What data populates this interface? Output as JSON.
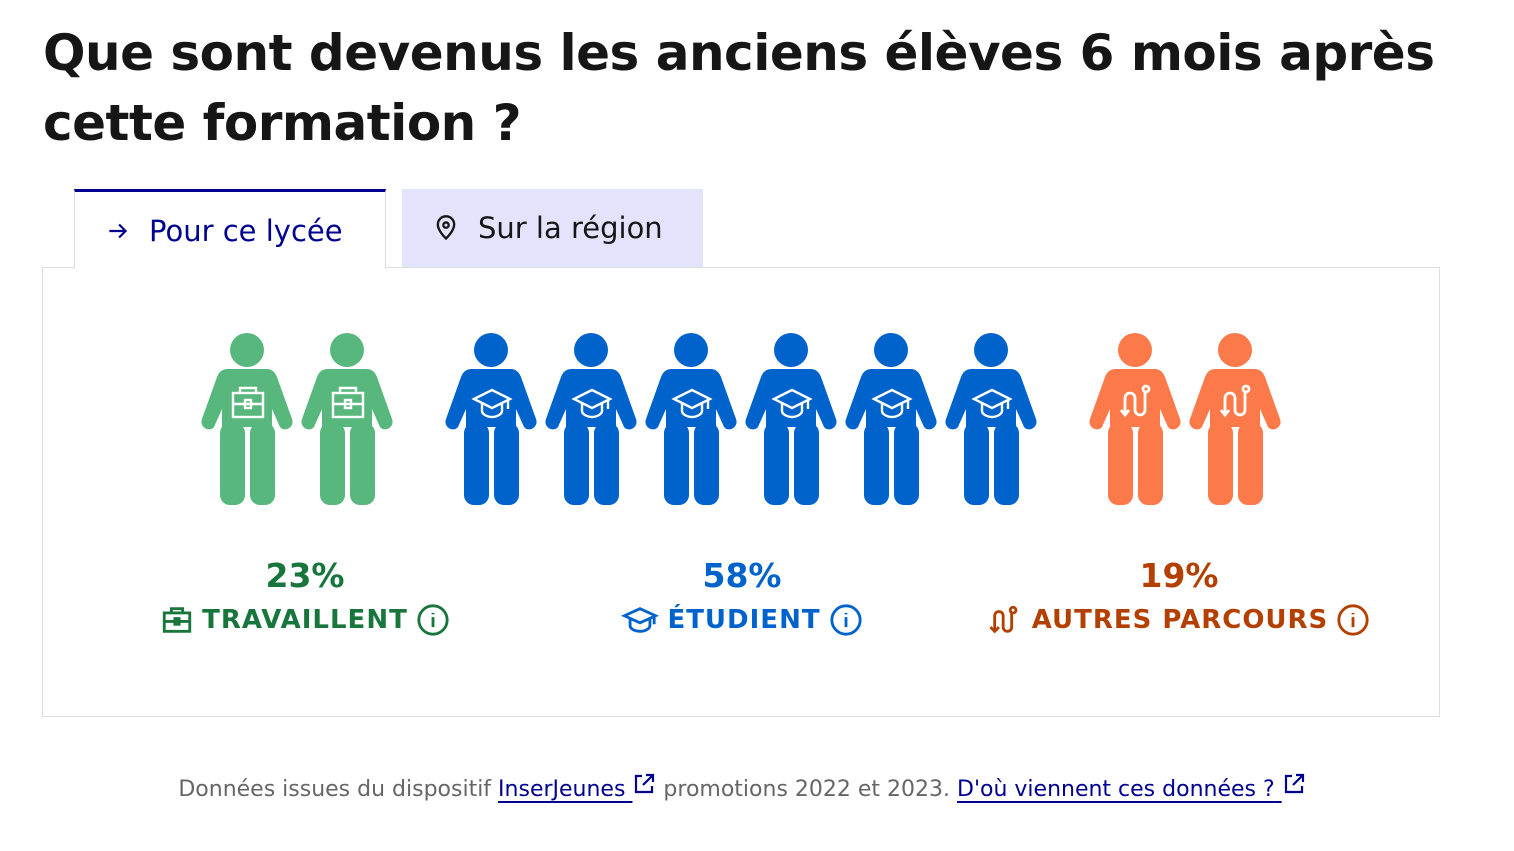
{
  "title": "Que sont devenus les anciens élèves 6 mois après cette formation ?",
  "tabs": [
    {
      "label": "Pour ce lycée",
      "icon": "arrow-right-icon",
      "active": true
    },
    {
      "label": "Sur la région",
      "icon": "map-pin-icon",
      "active": false
    }
  ],
  "stats": [
    {
      "percent": "23%",
      "label": "TRAVAILLENT",
      "icon": "briefcase-icon",
      "count": 2,
      "figure_color": "#58b77d",
      "text_color": "#18753c"
    },
    {
      "percent": "58%",
      "label": "ÉTUDIENT",
      "icon": "graduation-cap-icon",
      "count": 6,
      "figure_color": "#0063cb",
      "text_color": "#0063cb"
    },
    {
      "percent": "19%",
      "label": "AUTRES PARCOURS",
      "icon": "route-icon",
      "count": 2,
      "figure_color": "#fc7a49",
      "text_color": "#b34000"
    }
  ],
  "footer": {
    "text1": "Données issues du dispositif ",
    "link1": "InserJeunes",
    "text2": " promotions 2022 et 2023. ",
    "link2": "D'où viennent ces données ?"
  }
}
